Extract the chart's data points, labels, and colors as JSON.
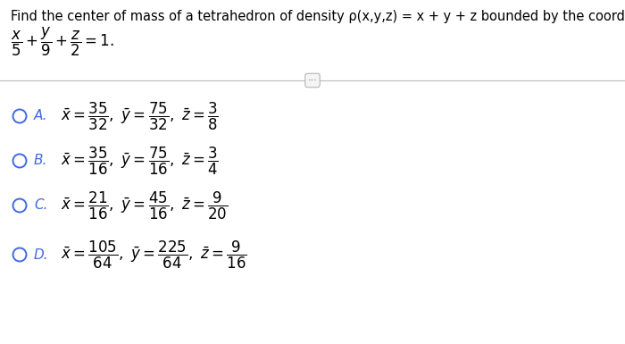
{
  "bg_color": "#ffffff",
  "header_text": "Find the center of mass of a tetrahedron of density ρ(x,y,z) = x + y + z bounded by the coordinate planes and the plane",
  "text_color": "#000000",
  "blue_color": "#4169e1",
  "header_fontsize": 10.5,
  "plane_fontsize": 12,
  "option_fontsize": 12,
  "label_fontsize": 11,
  "options": [
    {
      "label": "A.",
      "formula": "$\\bar{x}=\\dfrac{35}{32},\\ \\bar{y}=\\dfrac{75}{32},\\ \\bar{z}=\\dfrac{3}{8}$"
    },
    {
      "label": "B.",
      "formula": "$\\bar{x}=\\dfrac{35}{16},\\ \\bar{y}=\\dfrac{75}{16},\\ \\bar{z}=\\dfrac{3}{4}$"
    },
    {
      "label": "C.",
      "formula": "$\\bar{x}=\\dfrac{21}{16},\\ \\bar{y}=\\dfrac{45}{16},\\ \\bar{z}=\\dfrac{9}{20}$"
    },
    {
      "label": "D.",
      "formula": "$\\bar{x}=\\dfrac{105}{64},\\ \\bar{y}=\\dfrac{225}{64},\\ \\bar{z}=\\dfrac{9}{16}$"
    }
  ]
}
